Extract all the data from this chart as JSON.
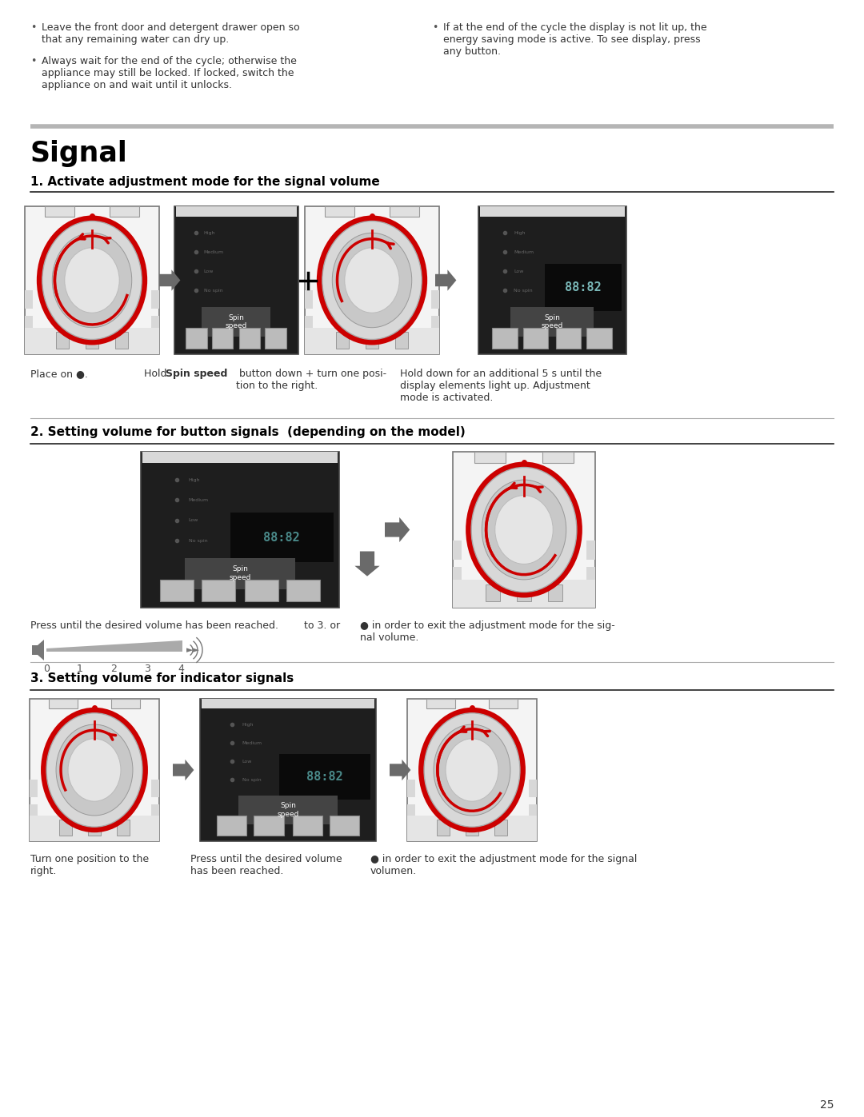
{
  "page_bg": "#ffffff",
  "text_color": "#333333",
  "red_color": "#cc0000",
  "dark_panel_bg": "#252525",
  "dark_panel_top": "#dddddd",
  "knob_panel_bg": "#f2f2f2",
  "knob_panel_border": "#888888",
  "knob_outer_gray": "#cccccc",
  "knob_inner": "#e8e8e8",
  "knob_innermost": "#d5d5d5",
  "arrow_fill": "#6a6a6a",
  "plus_color": "#000000",
  "line_dark": "#222222",
  "line_gray": "#aaaaaa",
  "line_light": "#888888",
  "btn_gray": "#aaaaaa",
  "btn_light": "#cccccc",
  "section_title": "Signal",
  "sub1_title": "1. Activate adjustment mode for the signal volume",
  "sub2_title": "2. Setting volume for button signals  (depending on the model)",
  "sub3_title": "3. Setting volume for indicator signals",
  "sub1_text1": "Place on ●.",
  "sub1_text2a": "Hold ",
  "sub1_text2b": "Spin speed",
  "sub1_text2c": " button down + turn one posi-\ntion to the right.",
  "sub1_text3": "Hold down for an additional 5 s until the\ndisplay elements light up. Adjustment\nmode is activated.",
  "sub2_text1": "Press until the desired volume has been reached.",
  "sub2_text2": "to 3. or",
  "sub2_text3": "● in order to exit the adjustment mode for the sig-\nnal volume.",
  "sub3_text1": "Turn one position to the\nright.",
  "sub3_text2": "Press until the desired volume\nhas been reached.",
  "sub3_text3": "● in order to exit the adjustment mode for the signal\nvolumen.",
  "bullet1": "Leave the front door and detergent drawer open so\nthat any remaining water can dry up.",
  "bullet2": "Always wait for the end of the cycle; otherwise the\nappliance may still be locked. If locked, switch the\nappliance on and wait until it unlocks.",
  "bullet3": "If at the end of the cycle the display is not lit up, the\nenergy saving mode is active. To see display, press\nany button.",
  "page_num": "25",
  "vol_labels": [
    "0",
    "1",
    "2",
    "3",
    "4"
  ],
  "spin_label": "Spin\nspeed",
  "opt_labels": [
    "High",
    "Medium",
    "Low",
    "No spin"
  ],
  "opt_color": "#666666",
  "display_color": "#88aaaa"
}
